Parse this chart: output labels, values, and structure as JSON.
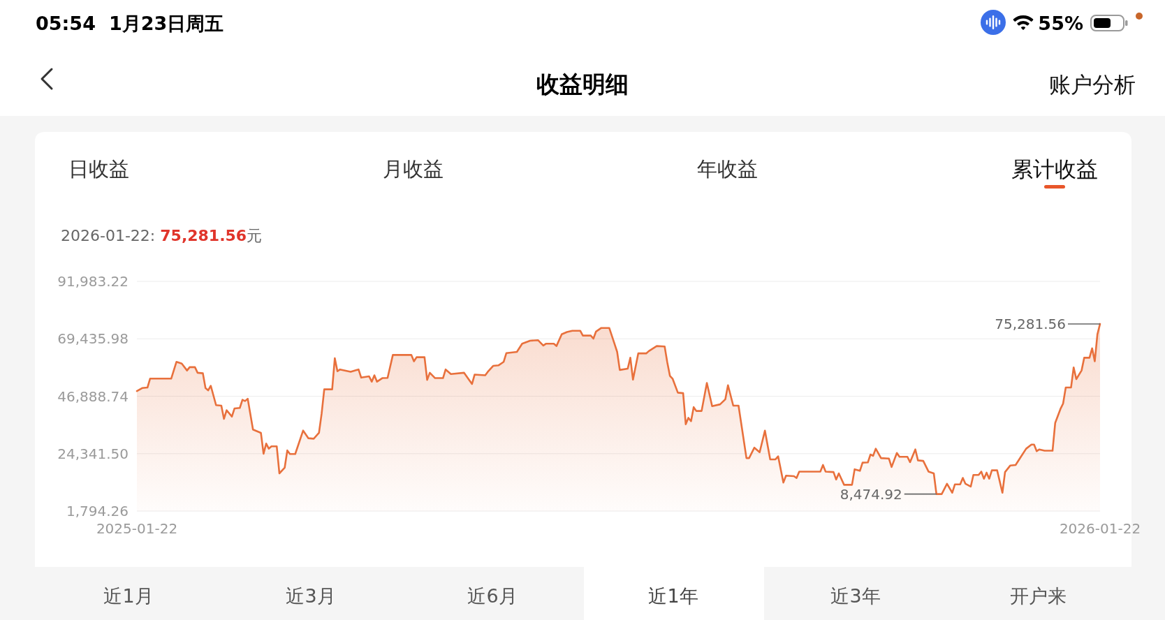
{
  "chart_data": {
    "type": "area",
    "title": "收益明细",
    "subtitle": "2026-01-22: 75,281.56元",
    "color": "#e8703c",
    "x": [
      "2025-01-22",
      "2025-01-24",
      "2025-01-26",
      "2025-01-27",
      "2025-02-04",
      "2025-02-06",
      "2025-02-08",
      "2025-02-10",
      "2025-02-11",
      "2025-02-13",
      "2025-02-14",
      "2025-02-16",
      "2025-02-17",
      "2025-02-18",
      "2025-02-19",
      "2025-02-21",
      "2025-02-23",
      "2025-02-24",
      "2025-02-25",
      "2025-02-27",
      "2025-02-28",
      "2025-03-02",
      "2025-03-03",
      "2025-03-04",
      "2025-03-05",
      "2025-03-07",
      "2025-03-10",
      "2025-03-11",
      "2025-03-12",
      "2025-03-13",
      "2025-03-14",
      "2025-03-16",
      "2025-03-17",
      "2025-03-19",
      "2025-03-20",
      "2025-03-21",
      "2025-03-23",
      "2025-03-26",
      "2025-03-28",
      "2025-03-30",
      "2025-04-01",
      "2025-04-02",
      "2025-04-03",
      "2025-04-06",
      "2025-04-07",
      "2025-04-08",
      "2025-04-09",
      "2025-04-13",
      "2025-04-16",
      "2025-04-17",
      "2025-04-20",
      "2025-04-21",
      "2025-04-22",
      "2025-04-23",
      "2025-04-25",
      "2025-04-27",
      "2025-04-29",
      "2025-05-06",
      "2025-05-07",
      "2025-05-08",
      "2025-05-11",
      "2025-05-12",
      "2025-05-13",
      "2025-05-15",
      "2025-05-18",
      "2025-05-19",
      "2025-05-21",
      "2025-05-26",
      "2025-05-29",
      "2025-05-30",
      "2025-06-03",
      "2025-06-04",
      "2025-06-06",
      "2025-06-08",
      "2025-06-10",
      "2025-06-11",
      "2025-06-15",
      "2025-06-17",
      "2025-06-20",
      "2025-06-23",
      "2025-06-25",
      "2025-06-26",
      "2025-06-29",
      "2025-06-30",
      "2025-07-02",
      "2025-07-04",
      "2025-07-06",
      "2025-07-09",
      "2025-07-10",
      "2025-07-13",
      "2025-07-14",
      "2025-07-15",
      "2025-07-17",
      "2025-07-20",
      "2025-07-22",
      "2025-07-23",
      "2025-07-24",
      "2025-07-27",
      "2025-07-28",
      "2025-07-29",
      "2025-07-31",
      "2025-08-03",
      "2025-08-04",
      "2025-08-07",
      "2025-08-10",
      "2025-08-11",
      "2025-08-12",
      "2025-08-13",
      "2025-08-15",
      "2025-08-17",
      "2025-08-18",
      "2025-08-19",
      "2025-08-20",
      "2025-08-21",
      "2025-08-22",
      "2025-08-24",
      "2025-08-26",
      "2025-08-28",
      "2025-08-31",
      "2025-09-02",
      "2025-09-03",
      "2025-09-05",
      "2025-09-07",
      "2025-09-10",
      "2025-09-11",
      "2025-09-13",
      "2025-09-15",
      "2025-09-17",
      "2025-09-19",
      "2025-09-21",
      "2025-09-22",
      "2025-09-24",
      "2025-09-25",
      "2025-09-28",
      "2025-09-29",
      "2025-09-30",
      "2025-10-08",
      "2025-10-09",
      "2025-10-10",
      "2025-10-13",
      "2025-10-14",
      "2025-10-15",
      "2025-10-17",
      "2025-10-20",
      "2025-10-21",
      "2025-10-23",
      "2025-10-24",
      "2025-10-26",
      "2025-10-27",
      "2025-10-28",
      "2025-10-29",
      "2025-10-31",
      "2025-11-03",
      "2025-11-04",
      "2025-11-06",
      "2025-11-07",
      "2025-11-10",
      "2025-11-11",
      "2025-11-13",
      "2025-11-14",
      "2025-11-16",
      "2025-11-18",
      "2025-11-20",
      "2025-11-21",
      "2025-11-23",
      "2025-11-25",
      "2025-11-27",
      "2025-11-28",
      "2025-11-30",
      "2025-12-01",
      "2025-12-02",
      "2025-12-04",
      "2025-12-05",
      "2025-12-07",
      "2025-12-08",
      "2025-12-09",
      "2025-12-10",
      "2025-12-11",
      "2025-12-12",
      "2025-12-14",
      "2025-12-16",
      "2025-12-17",
      "2025-12-19",
      "2025-12-21",
      "2025-12-23",
      "2025-12-25",
      "2025-12-27",
      "2025-12-28",
      "2025-12-29",
      "2025-12-30",
      "2026-01-01",
      "2026-01-04",
      "2026-01-05",
      "2026-01-07",
      "2026-01-08",
      "2026-01-09",
      "2026-01-11",
      "2026-01-12",
      "2026-01-13",
      "2026-01-15",
      "2026-01-16",
      "2026-01-18",
      "2026-01-19",
      "2026-01-20",
      "2026-01-21",
      "2026-01-22"
    ],
    "values": [
      48900,
      50100,
      50300,
      53800,
      53800,
      60400,
      59700,
      57000,
      58300,
      58300,
      56100,
      55900,
      50100,
      49200,
      51000,
      43400,
      43200,
      38000,
      41400,
      38900,
      42100,
      42300,
      45500,
      45000,
      45900,
      33800,
      32500,
      24300,
      28300,
      26300,
      27200,
      27200,
      16600,
      18800,
      25600,
      24200,
      24200,
      33400,
      30400,
      30200,
      32500,
      40000,
      49600,
      49600,
      61800,
      56700,
      57400,
      56500,
      57400,
      54200,
      54700,
      52600,
      55100,
      52600,
      54000,
      54100,
      63100,
      63100,
      60600,
      62200,
      62200,
      53300,
      56100,
      54000,
      54000,
      57400,
      55600,
      56100,
      51700,
      55400,
      55100,
      56500,
      58800,
      59000,
      60400,
      63800,
      64300,
      67500,
      68700,
      68900,
      66800,
      67500,
      67500,
      66600,
      71200,
      72100,
      72600,
      72600,
      70700,
      70700,
      69500,
      72300,
      73700,
      73700,
      67500,
      64300,
      57200,
      57700,
      62000,
      53400,
      63700,
      63700,
      64600,
      66600,
      66400,
      60200,
      54900,
      53800,
      48300,
      48100,
      35900,
      38400,
      37100,
      42600,
      41100,
      41100,
      52100,
      43000,
      43700,
      45700,
      51200,
      43200,
      43200,
      22600,
      22600,
      26700,
      24900,
      33400,
      22100,
      22100,
      23300,
      13000,
      15700,
      15500,
      14800,
      17300,
      17300,
      19900,
      17300,
      17100,
      14200,
      16600,
      12100,
      12100,
      18200,
      17600,
      20800,
      20900,
      24000,
      23500,
      26300,
      22600,
      22400,
      19100,
      24600,
      23100,
      23100,
      21000,
      26000,
      21700,
      21500,
      17300,
      16600,
      8474.92,
      8474.92,
      12500,
      9000,
      12300,
      12300,
      14800,
      12500,
      11400,
      16000,
      16000,
      17300,
      14500,
      16900,
      14500,
      17800,
      17800,
      9000,
      17100,
      19700,
      19900,
      23100,
      26300,
      27900,
      27900,
      25300,
      26000,
      25500,
      25500,
      36400,
      41900,
      44000,
      50300,
      50300,
      58200,
      53600,
      57000,
      62000,
      62000,
      65700,
      60600,
      71200,
      75281.56
    ],
    "xlim": [
      "2025-01-22",
      "2026-01-22"
    ],
    "xticks": [
      "2025-01-22",
      "2026-01-22"
    ],
    "ylim": [
      1794.26,
      91983.22
    ],
    "yticks": [
      {
        "value": 1794.26,
        "label": "1,794.26"
      },
      {
        "value": 24341.5,
        "label": "24,341.50"
      },
      {
        "value": 46888.74,
        "label": "46,888.74"
      },
      {
        "value": 69435.98,
        "label": "69,435.98"
      },
      {
        "value": 91983.22,
        "label": "91,983.22"
      }
    ],
    "grid": "y",
    "annotations": [
      "05:54",
      "1月23日周五",
      "55%",
      "账户分析",
      "日收益",
      "月收益",
      "年收益",
      "累计收益",
      "近1月",
      "近3月",
      "近6月",
      "近1年",
      "近3年",
      "开户来",
      {
        "text": "75,281.56",
        "x": "2026-01-22",
        "y": 75281.56
      },
      {
        "text": "8,474.92",
        "x": "2025-11-21",
        "y": 8474.92
      }
    ]
  }
}
